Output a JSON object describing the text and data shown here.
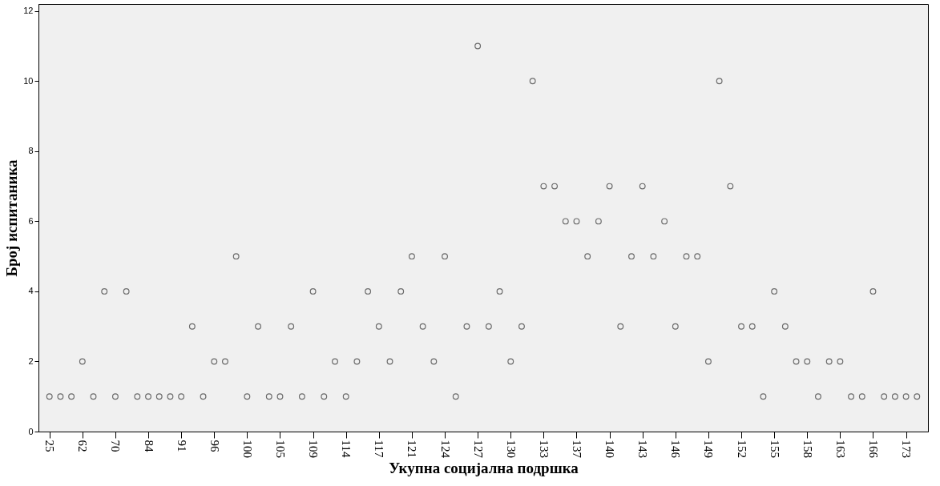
{
  "chart_data": {
    "type": "scatter",
    "xlabel": "Укупна социјална подршка",
    "ylabel": "Број испитаника",
    "categories": [
      "25",
      null,
      null,
      "62",
      null,
      null,
      "70",
      null,
      null,
      "84",
      null,
      null,
      "91",
      null,
      null,
      "96",
      null,
      null,
      "100",
      null,
      null,
      "105",
      null,
      null,
      "109",
      null,
      null,
      "114",
      null,
      null,
      "117",
      null,
      null,
      "121",
      null,
      null,
      "124",
      null,
      null,
      "127",
      null,
      null,
      "130",
      null,
      null,
      "133",
      null,
      null,
      "137",
      null,
      null,
      "140",
      null,
      null,
      "143",
      null,
      null,
      "146",
      null,
      null,
      "149",
      null,
      null,
      "152",
      null,
      null,
      "155",
      null,
      null,
      "158",
      null,
      null,
      "163",
      null,
      null,
      "166",
      null,
      null,
      "173",
      null
    ],
    "values": [
      1,
      1,
      1,
      2,
      1,
      4,
      1,
      4,
      1,
      1,
      1,
      1,
      1,
      3,
      1,
      2,
      2,
      5,
      1,
      3,
      1,
      1,
      3,
      1,
      4,
      1,
      2,
      1,
      2,
      4,
      3,
      2,
      4,
      5,
      3,
      2,
      5,
      1,
      3,
      11,
      3,
      4,
      2,
      3,
      10,
      7,
      7,
      6,
      6,
      5,
      6,
      7,
      3,
      5,
      7,
      5,
      6,
      3,
      5,
      5,
      2,
      10,
      7,
      3,
      3,
      1,
      4,
      3,
      2,
      2,
      1,
      2,
      2,
      1,
      1,
      4,
      1,
      1,
      1,
      1
    ],
    "color": "#333333",
    "marker": "circle",
    "ylim": [
      0,
      12.2
    ],
    "yticks": [
      0,
      2,
      4,
      6,
      8,
      10,
      12
    ],
    "grid": false
  }
}
